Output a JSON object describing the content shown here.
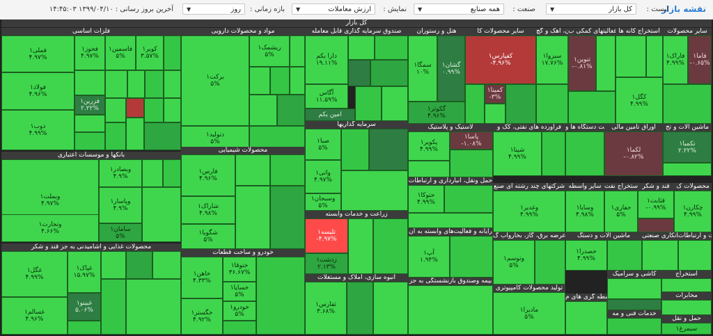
{
  "toolbar": {
    "title": "نقشه بازار",
    "list_label": "لیست :",
    "list_value": "کل بازار",
    "industry_label": "صنعت :",
    "industry_value": "همه صنایع",
    "display_label": "نمایش :",
    "display_value": "ارزش معاملات",
    "period_label": "بازه زمانی :",
    "period_value": "روز",
    "last_update": "آخرین بروز رسانی : ۱۳۹۹/۰۴/۱۰ ۱۴:۴۵:۰۳"
  },
  "colors": {
    "strong_green": "#3fd64e",
    "dark_green": "#2e7d43",
    "red": "#ff4a4a",
    "dark_red": "#6b3a40"
  },
  "map": {
    "title": "کل بازار",
    "sectors": [
      {
        "name": "فلزات اساسی"
      },
      {
        "name": "مواد و محصولات دارویی"
      },
      {
        "name": "صندوق سرمایه گذاری قابل معامله"
      },
      {
        "name": "هتل و رستوران"
      },
      {
        "name": "سایر محصولات کا"
      },
      {
        "name": "سیمان، آهک و گچ"
      },
      {
        "name": "فعالیتهای کمکی ب"
      },
      {
        "name": "استخراج کانه ها"
      },
      {
        "name": "سایر محصولات"
      },
      {
        "name": "بانکها و موسسات اعتباری"
      },
      {
        "name": "محصولات شیمیایی"
      },
      {
        "name": "سرمایه گذاریها"
      },
      {
        "name": "لاستیک و پلاستیک"
      },
      {
        "name": "فراورده های نفتی، کک و"
      },
      {
        "name": "ساخت دستگاه ها و"
      },
      {
        "name": "اوراق تامین مالی"
      },
      {
        "name": "ماشین آلات و تج"
      },
      {
        "name": "حمل ونقل، انبارداری و ارتباطات"
      },
      {
        "name": "شرکتهای چند رشته ای صنع"
      },
      {
        "name": "سایر واسطه"
      },
      {
        "name": "استخراج نفت"
      },
      {
        "name": "قند و شکر"
      },
      {
        "name": "محصولات ک"
      },
      {
        "name": "زراعت و خدمات وابسته"
      },
      {
        "name": "محصولات غذایی و آشامیدنی به جز قند و شکر"
      },
      {
        "name": "خودرو و ساخت قطعات"
      },
      {
        "name": "رایانه و فعالیت‌های وابسته به آن"
      },
      {
        "name": "عرضه برق، گاز، بخاروآب گ"
      },
      {
        "name": "ماشین آلات و دستگ"
      },
      {
        "name": "پیمانکاری صنعتی"
      },
      {
        "name": "اطلاعات و ارتباطات"
      },
      {
        "name": "انبوه سازی، املاک و مستغلات"
      },
      {
        "name": "بیمه وصندوق بازنشستگی به جز"
      },
      {
        "name": "تولید محصولات کامپیوتری"
      },
      {
        "name": "کاشی و سرامیک"
      },
      {
        "name": "واسطه گری های م"
      },
      {
        "name": "خدمات فنی و مه"
      },
      {
        "name": "استخراج"
      },
      {
        "name": "مخابرات"
      },
      {
        "name": "حمل و نقل"
      }
    ],
    "tiles": [
      {
        "name": "فملی۱",
        "pct": "۴.۹۷%"
      },
      {
        "name": "فولاد۱",
        "pct": "۴.۹۶%"
      },
      {
        "name": "ذوب۱",
        "pct": "۴.۹۹%"
      },
      {
        "name": "فخوز۱",
        "pct": "۴.۹۷%"
      },
      {
        "name": "فاسمین۱",
        "pct": "۵%"
      },
      {
        "name": "کویر۱",
        "pct": "۳.۵۷%"
      },
      {
        "name": "فزرین۱",
        "pct": "۲.۲۲%"
      },
      {
        "name": "برکت۱",
        "pct": "۵%"
      },
      {
        "name": "ریشمک۱",
        "pct": "۵%"
      },
      {
        "name": "دتولید۱",
        "pct": "۵%"
      },
      {
        "name": "دارا یکم",
        "pct": "۱۹.۱۱%"
      },
      {
        "name": "آگاس",
        "pct": "۱۱.۵۹%"
      },
      {
        "name": "امین یکم",
        "pct": ""
      },
      {
        "name": "سمگا۱",
        "pct": "۱۰%"
      },
      {
        "name": "گشان۱",
        "pct": "۰.۹۹%"
      },
      {
        "name": "گکوثر۱",
        "pct": "۴.۹۶%"
      },
      {
        "name": "کفپارس۱",
        "pct": "-۴.۹۶%"
      },
      {
        "name": "کمینا۱",
        "pct": "-۳%"
      },
      {
        "name": "سیزوا۱",
        "pct": "۱۷.۷۶%"
      },
      {
        "name": "تنوین۱",
        "pct": "-۰.۸۱%"
      },
      {
        "name": "کگل۱",
        "pct": "۴.۹۹%"
      },
      {
        "name": "فاما۱",
        "pct": "-۰.۶۵%"
      },
      {
        "name": "فاراک۱",
        "pct": "۴.۹۹%"
      },
      {
        "name": "وبملت۱",
        "pct": "۴.۹۷%"
      },
      {
        "name": "وتجارت۱",
        "pct": "۴.۶۶%"
      },
      {
        "name": "وبصادر۱",
        "pct": "۴.۹%"
      },
      {
        "name": "وپاسار۱",
        "pct": "۴.۹%"
      },
      {
        "name": "سامان۱",
        "pct": "۵%"
      },
      {
        "name": "فارس۱",
        "pct": "۴.۹۶%"
      },
      {
        "name": "شاراک۱",
        "pct": "۴.۹۸%"
      },
      {
        "name": "شگویا۱",
        "pct": "۵%"
      },
      {
        "name": "صبا۱",
        "pct": "۵%"
      },
      {
        "name": "واتی۱",
        "pct": "۴.۹۷%"
      },
      {
        "name": "وسبحان۱",
        "pct": "۵%"
      },
      {
        "name": "پکویر۱",
        "pct": "۴.۹۹%"
      },
      {
        "name": "پاسا۱",
        "pct": "-۱.۰۸%"
      },
      {
        "name": "شپنا۱",
        "pct": "۴.۹۹%"
      },
      {
        "name": "لکما۱",
        "pct": "-۰.۸۲%"
      },
      {
        "name": "تکمبا۱",
        "pct": "۲.۲۲%"
      },
      {
        "name": "حتوکا۱",
        "pct": "۴.۹۹%"
      },
      {
        "name": "وغدیر۱",
        "pct": "۴.۹۹%"
      },
      {
        "name": "وسایا۱",
        "pct": "۴.۹۸%"
      },
      {
        "name": "حفاری۱",
        "pct": "۵%"
      },
      {
        "name": "قثابت۱",
        "pct": "-۰.۹۹%"
      },
      {
        "name": "چکارن۱",
        "pct": "۴.۹۹%"
      },
      {
        "name": "تلیسه۱",
        "pct": "-۴.۹۷%"
      },
      {
        "name": "زدشت۱",
        "pct": "۲.۱۳%"
      },
      {
        "name": "غگل۱",
        "pct": "۴.۹۹%"
      },
      {
        "name": "غپاک۱",
        "pct": "۱۵.۹۷%"
      },
      {
        "name": "غبینو۱",
        "pct": "۵.۰۶%"
      },
      {
        "name": "غسالم۱",
        "pct": "۴.۹۶%"
      },
      {
        "name": "خودرو۱",
        "pct": "۵%"
      },
      {
        "name": "خساپا۱",
        "pct": "۵%"
      },
      {
        "name": "خگستر۱",
        "pct": "۴.۹۲%"
      },
      {
        "name": "خاهن۱",
        "pct": "۴.۳۳%"
      },
      {
        "name": "ختوقا۱",
        "pct": "۳۶.۶۷%"
      },
      {
        "name": "آپ۱",
        "pct": "۱.۹۴%"
      },
      {
        "name": "وتوسم۱",
        "pct": "۵%"
      },
      {
        "name": "ثفارس۱",
        "pct": "۳.۶۸%"
      },
      {
        "name": "مادیرا۱",
        "pct": "۵%"
      },
      {
        "name": "خصدرا۱",
        "pct": "۴.۹۹%"
      },
      {
        "name": "سیمرغ۱",
        "pct": "۵%"
      },
      {
        "name": "شیوا۱",
        "pct": "۵%"
      }
    ]
  }
}
